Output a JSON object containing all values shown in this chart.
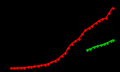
{
  "background_color": "#000000",
  "red_line": {
    "x": [
      1950,
      1952,
      1954,
      1956,
      1958,
      1960,
      1962,
      1964,
      1966,
      1968,
      1970,
      1972,
      1974,
      1976,
      1978,
      1980,
      1982,
      1984,
      1986,
      1988,
      1990,
      1992,
      1994,
      1996,
      1998,
      2000,
      2002,
      2004,
      2006,
      2008,
      2010
    ],
    "y": [
      180,
      200,
      230,
      260,
      310,
      380,
      440,
      520,
      620,
      720,
      870,
      1050,
      1300,
      1600,
      2000,
      2590,
      3100,
      4200,
      5000,
      5500,
      5900,
      6800,
      7600,
      8000,
      8500,
      9000,
      9500,
      9800,
      10000,
      11000,
      12000
    ],
    "color": "#ff0000",
    "linewidth": 0.8,
    "marker": "o",
    "markersize": 0.8
  },
  "green_line": {
    "x": [
      1995,
      1997,
      1999,
      2001,
      2003,
      2005,
      2007,
      2009,
      2010
    ],
    "y": [
      3800,
      4000,
      4300,
      4500,
      4700,
      4900,
      5200,
      5500,
      5700
    ],
    "color": "#00cc00",
    "linewidth": 0.8,
    "marker": "o",
    "markersize": 0.8
  },
  "xlim": [
    1948,
    2013
  ],
  "ylim": [
    0,
    13000
  ]
}
